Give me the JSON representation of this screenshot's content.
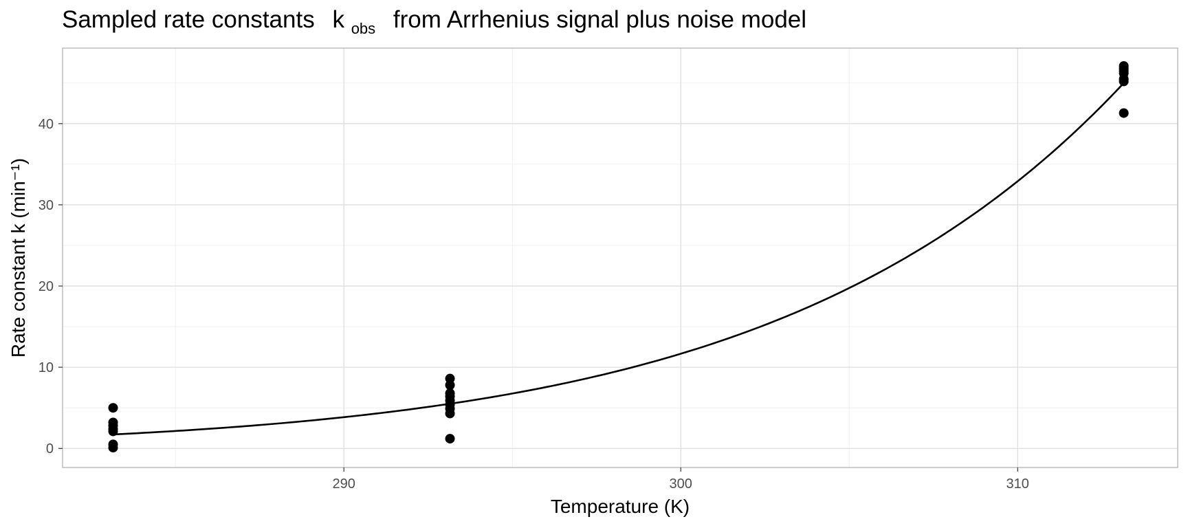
{
  "chart_data": {
    "type": "scatter",
    "title_text": "Sampled rate constants",
    "title_symbol": "k",
    "title_symbol_sub": "obs",
    "title_suffix": "from Arrhenius signal plus noise model",
    "xlabel": "Temperature (K)",
    "ylabel": "Rate constant k (min⁻¹)",
    "xlim": [
      281.65,
      314.75
    ],
    "ylim": [
      -2.35,
      49.3
    ],
    "x_ticks": [
      290,
      300,
      310
    ],
    "x_tick_labels": [
      "290",
      "300",
      "310"
    ],
    "x_minor_ticks": [
      285,
      295,
      305
    ],
    "y_ticks": [
      0,
      10,
      20,
      30,
      40
    ],
    "y_tick_labels": [
      "0",
      "10",
      "20",
      "30",
      "40"
    ],
    "y_minor_ticks": [
      5,
      15,
      25,
      35,
      45
    ],
    "grid": true,
    "legend": "none",
    "point_color": "#000000",
    "line_color": "#000000",
    "points": [
      {
        "x": 283.15,
        "y": 5.0
      },
      {
        "x": 283.15,
        "y": 3.2
      },
      {
        "x": 283.15,
        "y": 2.8
      },
      {
        "x": 283.15,
        "y": 2.4
      },
      {
        "x": 283.15,
        "y": 2.1
      },
      {
        "x": 283.15,
        "y": 0.5
      },
      {
        "x": 283.15,
        "y": 0.1
      },
      {
        "x": 293.15,
        "y": 8.6
      },
      {
        "x": 293.15,
        "y": 7.8
      },
      {
        "x": 293.15,
        "y": 6.8
      },
      {
        "x": 293.15,
        "y": 6.4
      },
      {
        "x": 293.15,
        "y": 5.9
      },
      {
        "x": 293.15,
        "y": 5.4
      },
      {
        "x": 293.15,
        "y": 4.9
      },
      {
        "x": 293.15,
        "y": 4.3
      },
      {
        "x": 293.15,
        "y": 1.2
      },
      {
        "x": 313.15,
        "y": 47.1
      },
      {
        "x": 313.15,
        "y": 46.8
      },
      {
        "x": 313.15,
        "y": 46.5
      },
      {
        "x": 313.15,
        "y": 46.2
      },
      {
        "x": 313.15,
        "y": 45.5
      },
      {
        "x": 313.15,
        "y": 45.2
      },
      {
        "x": 313.15,
        "y": 41.3
      }
    ],
    "fit_curve": {
      "model": "arrhenius",
      "T_ref": 293.15,
      "k_ref": 5.5,
      "k_high": 45.0,
      "T_high": 313.15,
      "x_range": [
        283.15,
        313.15
      ]
    }
  }
}
